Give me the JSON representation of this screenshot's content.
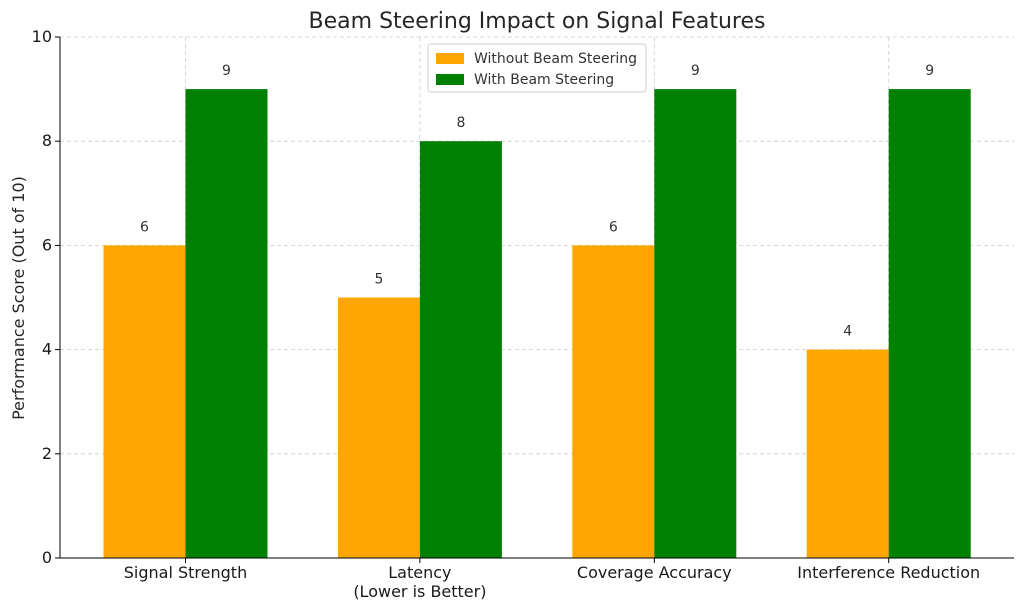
{
  "chart_data": {
    "type": "bar",
    "title": "Beam Steering Impact on Signal Features",
    "xlabel": "",
    "ylabel": "Performance Score (Out of 10)",
    "ylim": [
      0,
      10
    ],
    "yticks": [
      0,
      2,
      4,
      6,
      8,
      10
    ],
    "grid": true,
    "legend_position": "top-center",
    "categories": [
      [
        "Signal Strength"
      ],
      [
        "Latency",
        "(Lower is Better)"
      ],
      [
        "Coverage Accuracy"
      ],
      [
        "Interference Reduction"
      ]
    ],
    "series": [
      {
        "name": "Without Beam Steering",
        "color": "#ffa500",
        "values": [
          6,
          5,
          6,
          4
        ]
      },
      {
        "name": "With Beam Steering",
        "color": "#008000",
        "values": [
          9,
          8,
          9,
          9
        ]
      }
    ]
  }
}
